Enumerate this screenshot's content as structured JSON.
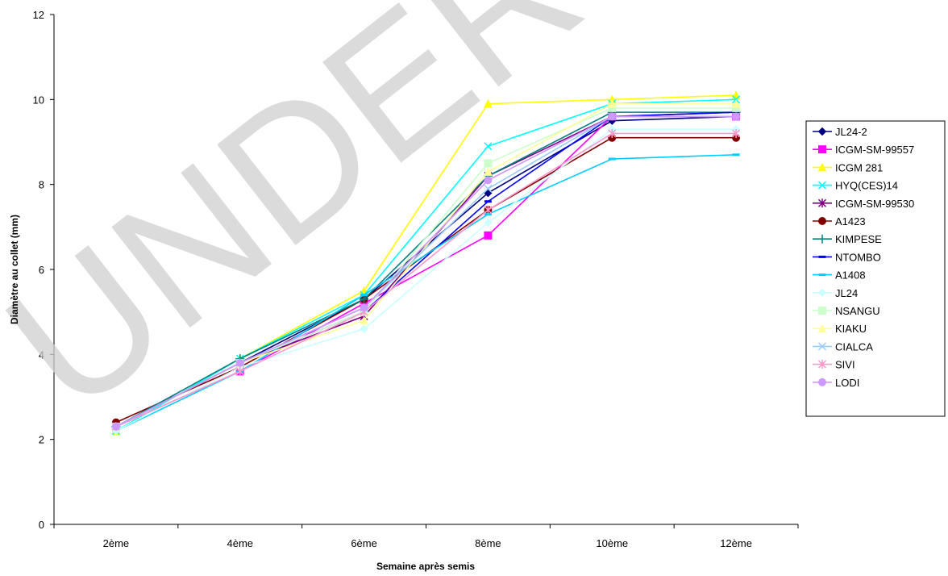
{
  "watermark": "UNDER PEER",
  "chart_data": {
    "type": "line",
    "xlabel": "Semaine après semis",
    "ylabel": "Diamètre au collet (mm)",
    "categories": [
      "2ème",
      "4ème",
      "6ème",
      "8ème",
      "10ème",
      "12ème"
    ],
    "ylim": [
      0,
      12
    ],
    "yticks": [
      0,
      2,
      4,
      6,
      8,
      10,
      12
    ],
    "legend_position": "right",
    "grid": false,
    "series": [
      {
        "name": "JL24-2",
        "color": "#000080",
        "marker": "diamond",
        "values": [
          2.3,
          3.8,
          5.3,
          7.8,
          9.5,
          9.6
        ]
      },
      {
        "name": "ICGM-SM-99557",
        "color": "#ff00ff",
        "marker": "square",
        "values": [
          2.3,
          3.6,
          5.2,
          6.8,
          9.6,
          9.6
        ]
      },
      {
        "name": "ICGM 281",
        "color": "#ffff00",
        "marker": "triangle",
        "values": [
          2.2,
          3.9,
          5.5,
          9.9,
          10.0,
          10.1
        ]
      },
      {
        "name": "HYQ(CES)14",
        "color": "#00ffff",
        "marker": "x",
        "values": [
          2.2,
          3.9,
          5.4,
          8.9,
          9.9,
          10.0
        ]
      },
      {
        "name": "ICGM-SM-99530",
        "color": "#800080",
        "marker": "star",
        "values": [
          2.3,
          3.8,
          4.9,
          8.2,
          9.6,
          9.7
        ]
      },
      {
        "name": "A1423",
        "color": "#800000",
        "marker": "circle",
        "values": [
          2.4,
          3.7,
          5.3,
          7.4,
          9.1,
          9.1
        ]
      },
      {
        "name": "KIMPESE",
        "color": "#008080",
        "marker": "plus",
        "values": [
          2.3,
          3.9,
          5.3,
          8.2,
          9.7,
          9.7
        ]
      },
      {
        "name": "NTOMBO",
        "color": "#0000ff",
        "marker": "dash",
        "values": [
          2.3,
          3.8,
          5.0,
          7.6,
          9.6,
          9.7
        ]
      },
      {
        "name": "A1408",
        "color": "#00ccff",
        "marker": "dash",
        "values": [
          2.2,
          3.6,
          5.4,
          7.3,
          8.6,
          8.7
        ]
      },
      {
        "name": "JL24",
        "color": "#ccffff",
        "marker": "diamond",
        "values": [
          2.2,
          3.7,
          4.6,
          7.1,
          9.3,
          9.3
        ]
      },
      {
        "name": "NSANGU",
        "color": "#ccffcc",
        "marker": "square",
        "values": [
          2.3,
          3.8,
          5.0,
          8.5,
          9.8,
          9.8
        ]
      },
      {
        "name": "KIAKU",
        "color": "#ffff99",
        "marker": "triangle",
        "values": [
          2.3,
          3.8,
          4.8,
          8.3,
          9.9,
          9.9
        ]
      },
      {
        "name": "CIALCA",
        "color": "#99ccff",
        "marker": "x",
        "values": [
          2.3,
          3.8,
          5.1,
          7.9,
          9.6,
          9.6
        ]
      },
      {
        "name": "SIVI",
        "color": "#ff99cc",
        "marker": "star",
        "values": [
          2.3,
          3.6,
          5.0,
          7.4,
          9.2,
          9.2
        ]
      },
      {
        "name": "LODI",
        "color": "#cc99ff",
        "marker": "circle",
        "values": [
          2.3,
          3.8,
          5.1,
          8.1,
          9.6,
          9.6
        ]
      }
    ]
  }
}
